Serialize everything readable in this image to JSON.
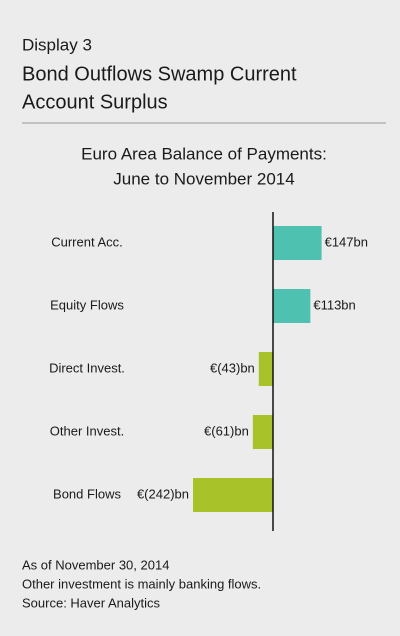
{
  "chart_data": {
    "type": "bar",
    "orientation": "horizontal",
    "display": "Display 3",
    "title": [
      "Bond Outflows Swamp Current",
      "Account Surplus"
    ],
    "chart_title": [
      "Euro Area Balance of Payments:",
      "June to November 2014"
    ],
    "categories": [
      "Current Acc.",
      "Equity Flows",
      "Direct Invest.",
      "Other Invest.",
      "Bond Flows"
    ],
    "values": [
      147,
      113,
      -43,
      -61,
      -242
    ],
    "value_labels": [
      "€147bn",
      "€113bn",
      "€(43)bn",
      "€(61)bn",
      "€(242)bn"
    ],
    "colors": [
      "#4fc1b0",
      "#4fc1b0",
      "#a8c32a",
      "#a8c32a",
      "#a8c32a"
    ],
    "notes": [
      "As of November 30, 2014",
      "Other investment is mainly banking flows.",
      "Source: Haver Analytics"
    ]
  }
}
